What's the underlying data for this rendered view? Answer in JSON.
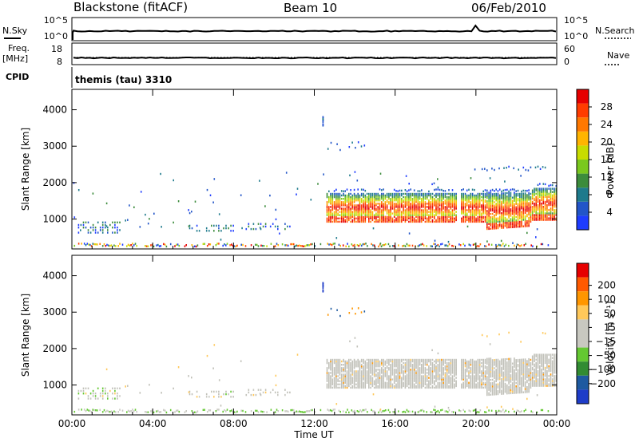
{
  "header": {
    "radar": "Blackstone (fitACF)",
    "beam": "Beam 10",
    "date": "06/Feb/2010"
  },
  "panels": {
    "nsky_label": "N.Sky",
    "nsky_ticks": [
      "10^5",
      "10^0"
    ],
    "nsearch_label": "N.Search",
    "nsearch_ticks": [
      "10^5",
      "10^0"
    ],
    "freq_label_1": "Freq.",
    "freq_label_2": "[MHz]",
    "freq_ticks": [
      "18",
      "8"
    ],
    "nave_label": "Nave",
    "nave_ticks": [
      "60",
      "0"
    ],
    "cpid_label": "CPID",
    "cpid_text": "themis (tau) 3310"
  },
  "colors": {
    "power_scale": [
      "#1e3cff",
      "#2255c8",
      "#1e7a8c",
      "#3c8c3c",
      "#7ac81e",
      "#c8dc00",
      "#ffb400",
      "#ff7800",
      "#ff3c00",
      "#e60000"
    ],
    "velocity_scale": [
      "#1e3cc8",
      "#1e5aa0",
      "#328c32",
      "#64c832",
      "#c8c8c0",
      "#c8c8c0",
      "#ffc85a",
      "#ff9600",
      "#ff5a00",
      "#e60000"
    ],
    "ground_scatter": "#c0c0b8"
  },
  "chart_data": [
    {
      "type": "heatmap",
      "title": "Power",
      "xlabel": "Time UT",
      "ylabel": "Slant Range [km]",
      "x_ticks": [
        "00:00",
        "04:00",
        "08:00",
        "12:00",
        "16:00",
        "20:00",
        "00:00"
      ],
      "x_range_hours": [
        0,
        24
      ],
      "y_ticks": [
        "1000",
        "2000",
        "3000",
        "4000"
      ],
      "ylim": [
        180,
        4560
      ],
      "colorbar_label": "Power [dB]",
      "colorbar_ticks": [
        "4",
        "8",
        "12",
        "16",
        "20",
        "24",
        "28"
      ],
      "colorbar_range": [
        0,
        32
      ],
      "bands": [
        {
          "t0": 12.6,
          "t1": 19.0,
          "r0": 900,
          "r1": 1700
        },
        {
          "t0": 19.2,
          "t1": 24.0,
          "r0": 800,
          "r1": 1700
        }
      ]
    },
    {
      "type": "heatmap",
      "title": "Velocity",
      "xlabel": "Time UT",
      "ylabel": "Slant Range [km]",
      "x_ticks": [
        "00:00",
        "04:00",
        "08:00",
        "12:00",
        "16:00",
        "20:00",
        "00:00"
      ],
      "x_range_hours": [
        0,
        24
      ],
      "y_ticks": [
        "1000",
        "2000",
        "3000",
        "4000"
      ],
      "ylim": [
        180,
        4560
      ],
      "colorbar_label": "Velocity [m s⁻¹]",
      "colorbar_ticks": [
        "200",
        "100",
        "50",
        "15",
        "−15",
        "−50",
        "−100",
        "−200"
      ],
      "colorbar_range": [
        -250,
        250
      ]
    }
  ]
}
